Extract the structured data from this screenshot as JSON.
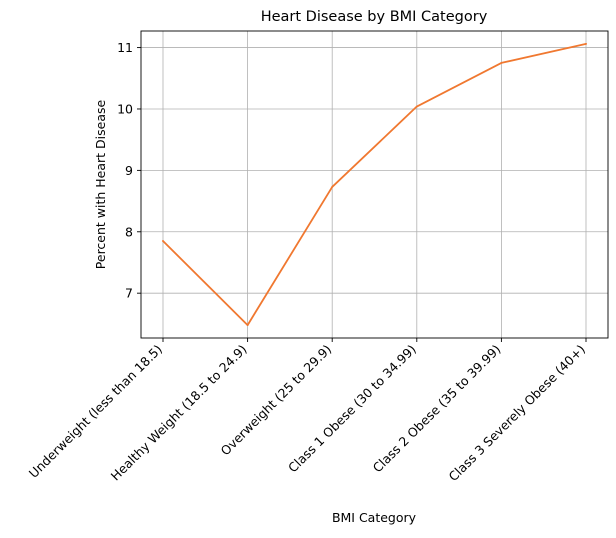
{
  "chart_data": {
    "type": "line",
    "title": "Heart Disease by BMI Category",
    "xlabel": "BMI Category",
    "ylabel": "Percent with Heart Disease",
    "categories": [
      "Underweight (less than 18.5)",
      "Healthy Weight (18.5 to 24.9)",
      "Overweight (25 to 29.9)",
      "Class 1 Obese (30 to 34.99)",
      "Class 2 Obese (35 to 39.99)",
      "Class 3 Severely Obese (40+)"
    ],
    "series": [
      {
        "values": [
          7.85,
          6.48,
          8.73,
          10.04,
          10.75,
          11.06
        ],
        "color": "#f07830"
      }
    ],
    "ylim": [
      6.27,
      11.27
    ],
    "yticks": [
      7,
      8,
      9,
      10,
      11
    ],
    "grid": true,
    "legend": "none"
  }
}
